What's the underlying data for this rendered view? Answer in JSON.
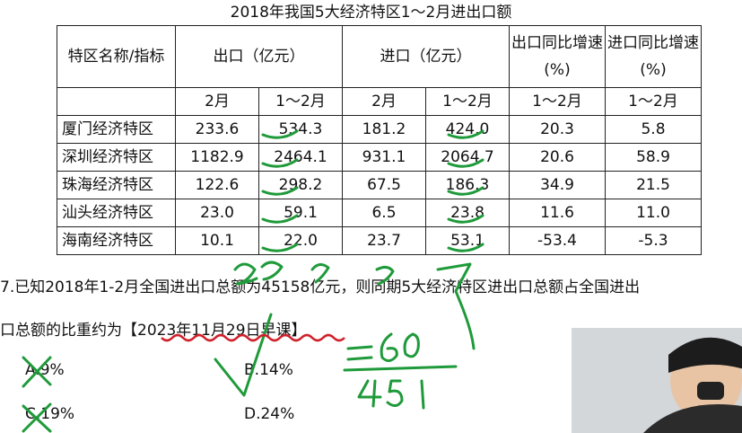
{
  "title": "2018年我国5大经济特区1～2月进出口额",
  "table": {
    "header": {
      "name": "特区名称/指标",
      "export": "出口（亿元）",
      "import": "进口（亿元）",
      "export_growth": "出口同比增速(%)",
      "import_growth": "进口同比增速(%)",
      "feb": "2月",
      "jan_feb": "1～2月"
    },
    "rows": [
      {
        "name": "厦门经济特区",
        "exp_feb": "233.6",
        "exp_jf": "534.3",
        "imp_feb": "181.2",
        "imp_jf": "424.0",
        "exp_g": "20.3",
        "imp_g": "5.8"
      },
      {
        "name": "深圳经济特区",
        "exp_feb": "1182.9",
        "exp_jf": "2464.1",
        "imp_feb": "931.1",
        "imp_jf": "2064.7",
        "exp_g": "20.6",
        "imp_g": "58.9"
      },
      {
        "name": "珠海经济特区",
        "exp_feb": "122.6",
        "exp_jf": "298.2",
        "imp_feb": "67.5",
        "imp_jf": "186.3",
        "exp_g": "34.9",
        "imp_g": "21.5"
      },
      {
        "name": "汕头经济特区",
        "exp_feb": "23.0",
        "exp_jf": "59.1",
        "imp_feb": "6.5",
        "imp_jf": "23.8",
        "exp_g": "11.6",
        "imp_g": "11.0"
      },
      {
        "name": "海南经济特区",
        "exp_feb": "10.1",
        "exp_jf": "22.0",
        "imp_feb": "23.7",
        "imp_jf": "53.1",
        "exp_g": "-53.4",
        "imp_g": "-5.3"
      }
    ]
  },
  "question": {
    "line1": "7.已知2018年1-2月全国进出口总额为45158亿元，则同期5大经济特区进出口总额占全国进出",
    "line2_prefix": "口总额的比重约为【",
    "line2_tag": "2023年11月29日早课",
    "line2_suffix": "】"
  },
  "options": {
    "a": "A.9%",
    "b": "B.14%",
    "c": "C.19%",
    "d": "D.24%"
  },
  "handwriting": {
    "sum_fraction_numerator": "=60",
    "sum_fraction_denominator": "451",
    "ink_color": "#1f9a3a",
    "underline_color": "#d0202a"
  }
}
